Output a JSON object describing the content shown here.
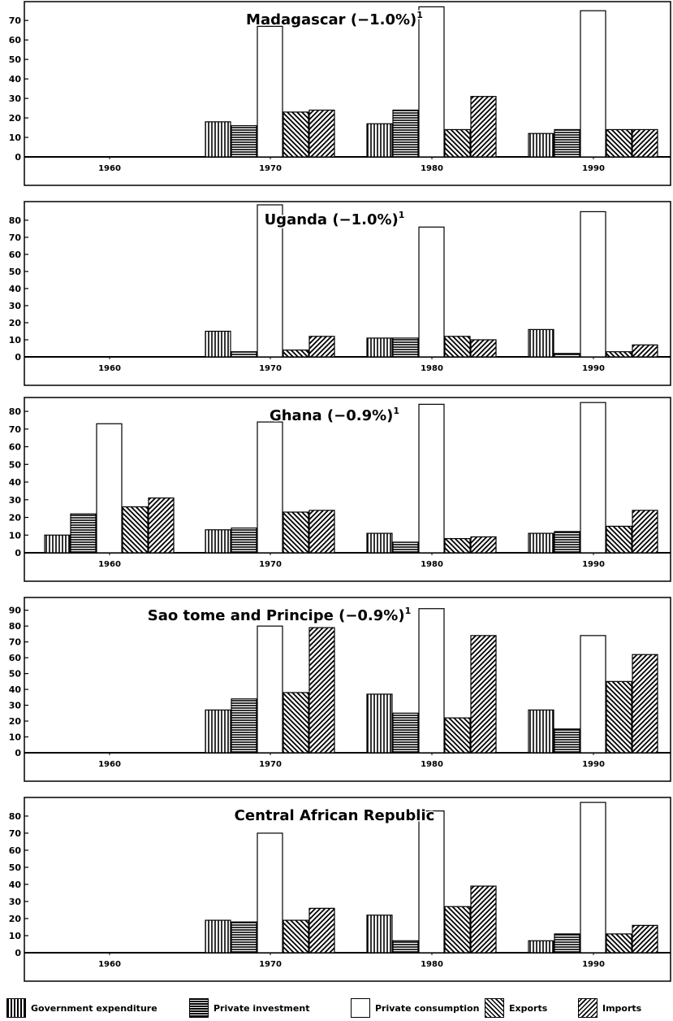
{
  "chart_data": [
    {
      "type": "bar",
      "title": "Madagascar (−1.0%)",
      "title_superscript": "1",
      "categories": [
        "1960",
        "1970",
        "1980",
        "1990"
      ],
      "yticks": [
        0,
        10,
        20,
        30,
        40,
        50,
        60,
        70
      ],
      "ylim": [
        0,
        78
      ],
      "series": [
        {
          "name": "Government expenditure",
          "values": [
            null,
            18,
            17,
            12
          ]
        },
        {
          "name": "Private investment",
          "values": [
            null,
            16,
            24,
            14
          ]
        },
        {
          "name": "Private consumption",
          "values": [
            null,
            67,
            77,
            75
          ]
        },
        {
          "name": "Exports",
          "values": [
            null,
            23,
            14,
            14
          ]
        },
        {
          "name": "Imports",
          "values": [
            null,
            24,
            31,
            14
          ]
        }
      ]
    },
    {
      "type": "bar",
      "title": "Uganda (−1.0%)",
      "title_superscript": "1",
      "categories": [
        "1960",
        "1970",
        "1980",
        "1990"
      ],
      "yticks": [
        0,
        10,
        20,
        30,
        40,
        50,
        60,
        70,
        80
      ],
      "ylim": [
        0,
        89
      ],
      "series": [
        {
          "name": "Government expenditure",
          "values": [
            null,
            15,
            11,
            16
          ]
        },
        {
          "name": "Private investment",
          "values": [
            null,
            3,
            11,
            2
          ]
        },
        {
          "name": "Private consumption",
          "values": [
            null,
            89,
            76,
            85
          ]
        },
        {
          "name": "Exports",
          "values": [
            null,
            4,
            12,
            3
          ]
        },
        {
          "name": "Imports",
          "values": [
            null,
            12,
            10,
            7
          ]
        }
      ]
    },
    {
      "type": "bar",
      "title": "Ghana (−0.9%)",
      "title_superscript": "1",
      "categories": [
        "1960",
        "1970",
        "1980",
        "1990"
      ],
      "yticks": [
        0,
        10,
        20,
        30,
        40,
        50,
        60,
        70,
        80
      ],
      "ylim": [
        0,
        86
      ],
      "series": [
        {
          "name": "Government expenditure",
          "values": [
            10,
            13,
            11,
            11
          ]
        },
        {
          "name": "Private investment",
          "values": [
            22,
            14,
            6,
            12
          ]
        },
        {
          "name": "Private consumption",
          "values": [
            73,
            74,
            84,
            85
          ]
        },
        {
          "name": "Exports",
          "values": [
            26,
            23,
            8,
            15
          ]
        },
        {
          "name": "Imports",
          "values": [
            31,
            24,
            9,
            24
          ]
        }
      ]
    },
    {
      "type": "bar",
      "title": "Sao tome and Principe (−0.9%)",
      "title_superscript": "1",
      "categories": [
        "1960",
        "1970",
        "1980",
        "1990"
      ],
      "yticks": [
        0,
        10,
        20,
        30,
        40,
        50,
        60,
        70,
        80,
        90
      ],
      "ylim": [
        0,
        96
      ],
      "series": [
        {
          "name": "Government expenditure",
          "values": [
            null,
            27,
            37,
            27
          ]
        },
        {
          "name": "Private investment",
          "values": [
            null,
            34,
            25,
            15
          ]
        },
        {
          "name": "Private consumption",
          "values": [
            null,
            80,
            91,
            74
          ]
        },
        {
          "name": "Exports",
          "values": [
            null,
            38,
            22,
            45
          ]
        },
        {
          "name": "Imports",
          "values": [
            null,
            79,
            74,
            62
          ]
        }
      ]
    },
    {
      "type": "bar",
      "title": "Central African Republic",
      "title_superscript": "",
      "categories": [
        "1960",
        "1970",
        "1980",
        "1990"
      ],
      "yticks": [
        0,
        10,
        20,
        30,
        40,
        50,
        60,
        70,
        80
      ],
      "ylim": [
        0,
        89
      ],
      "series": [
        {
          "name": "Government expenditure",
          "values": [
            null,
            19,
            22,
            7
          ]
        },
        {
          "name": "Private investment",
          "values": [
            null,
            18,
            7,
            11
          ]
        },
        {
          "name": "Private consumption",
          "values": [
            null,
            70,
            83,
            88
          ]
        },
        {
          "name": "Exports",
          "values": [
            null,
            19,
            27,
            11
          ]
        },
        {
          "name": "Imports",
          "values": [
            null,
            26,
            39,
            16
          ]
        }
      ]
    }
  ],
  "legend": {
    "items": [
      {
        "label": "Government expenditure",
        "pattern": "vertical"
      },
      {
        "label": "Private investment",
        "pattern": "horizontal"
      },
      {
        "label": "Private consumption",
        "pattern": "blank"
      },
      {
        "label": "Exports",
        "pattern": "diag-down"
      },
      {
        "label": "Imports",
        "pattern": "diag-up"
      }
    ]
  }
}
